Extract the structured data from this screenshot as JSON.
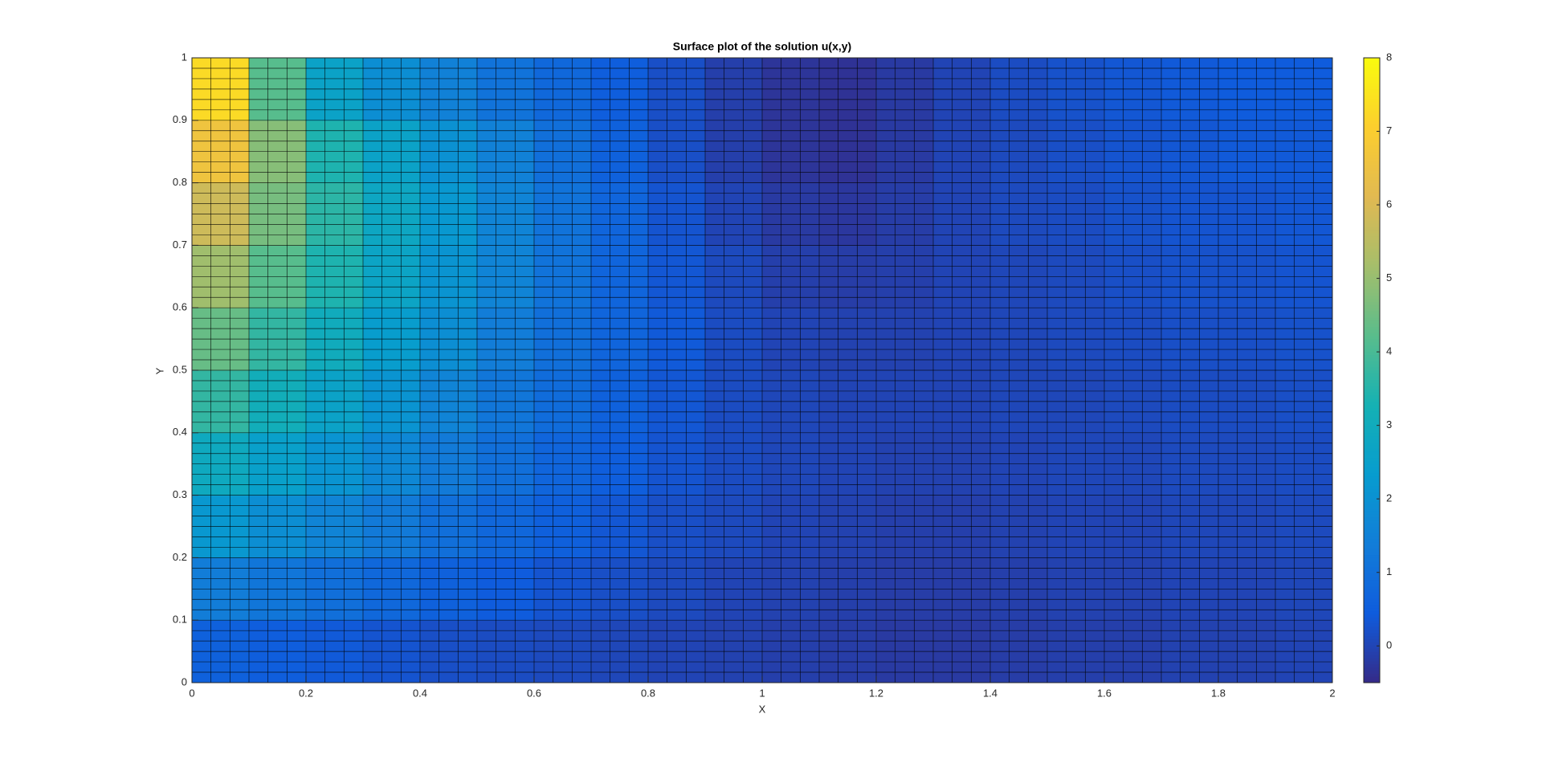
{
  "chart_data": {
    "type": "heatmap",
    "title": "Surface plot of the solution u(x,y)",
    "x_label": "X",
    "y_label": "Y",
    "x": [
      0.05,
      0.15,
      0.25,
      0.35,
      0.45,
      0.55,
      0.65,
      0.75,
      0.85,
      0.95,
      1.05,
      1.15,
      1.25,
      1.35,
      1.45,
      1.55,
      1.65,
      1.75,
      1.85,
      1.95
    ],
    "y": [
      0.05,
      0.15,
      0.25,
      0.35,
      0.45,
      0.55,
      0.65,
      0.75,
      0.85,
      0.95
    ],
    "z": [
      [
        0.6,
        0.5,
        0.4,
        0.3,
        0.2,
        0.15,
        0.1,
        0.05,
        0.0,
        -0.05,
        -0.1,
        -0.15,
        -0.2,
        -0.2,
        -0.15,
        -0.1,
        -0.1,
        -0.05,
        -0.05,
        0.0
      ],
      [
        1.4,
        1.2,
        1.0,
        0.8,
        0.6,
        0.45,
        0.3,
        0.2,
        0.1,
        0.0,
        -0.05,
        -0.1,
        -0.15,
        -0.15,
        -0.1,
        -0.05,
        -0.05,
        0.0,
        0.0,
        0.05
      ],
      [
        2.2,
        1.9,
        1.6,
        1.3,
        1.0,
        0.75,
        0.55,
        0.35,
        0.2,
        0.1,
        0.0,
        -0.05,
        -0.1,
        -0.1,
        -0.05,
        0.0,
        0.0,
        0.05,
        0.05,
        0.1
      ],
      [
        2.9,
        2.5,
        2.1,
        1.7,
        1.3,
        1.0,
        0.7,
        0.5,
        0.3,
        0.15,
        0.05,
        0.0,
        -0.05,
        -0.05,
        0.0,
        0.05,
        0.05,
        0.1,
        0.1,
        0.15
      ],
      [
        3.7,
        3.1,
        2.6,
        2.1,
        1.6,
        1.2,
        0.9,
        0.6,
        0.35,
        0.15,
        0.05,
        0.0,
        0.0,
        0.0,
        0.05,
        0.05,
        0.1,
        0.15,
        0.15,
        0.2
      ],
      [
        4.4,
        3.7,
        3.0,
        2.4,
        1.9,
        1.4,
        1.0,
        0.7,
        0.4,
        0.15,
        0.0,
        -0.05,
        -0.05,
        0.0,
        0.05,
        0.1,
        0.15,
        0.2,
        0.2,
        0.25
      ],
      [
        5.1,
        4.2,
        3.4,
        2.7,
        2.1,
        1.6,
        1.1,
        0.7,
        0.35,
        0.1,
        -0.1,
        -0.15,
        -0.1,
        0.0,
        0.05,
        0.1,
        0.2,
        0.25,
        0.25,
        0.3
      ],
      [
        5.8,
        4.6,
        3.6,
        2.8,
        2.2,
        1.6,
        1.1,
        0.7,
        0.3,
        0.0,
        -0.2,
        -0.25,
        -0.15,
        0.0,
        0.1,
        0.15,
        0.25,
        0.3,
        0.3,
        0.35
      ],
      [
        6.6,
        4.8,
        3.4,
        2.6,
        2.0,
        1.5,
        1.0,
        0.6,
        0.2,
        -0.1,
        -0.3,
        -0.35,
        -0.2,
        0.0,
        0.1,
        0.2,
        0.3,
        0.35,
        0.4,
        0.4
      ],
      [
        7.3,
        4.2,
        2.6,
        1.9,
        1.5,
        1.1,
        0.8,
        0.5,
        0.2,
        -0.1,
        -0.3,
        -0.35,
        -0.2,
        0.0,
        0.15,
        0.25,
        0.35,
        0.4,
        0.45,
        0.45
      ]
    ],
    "xlim": [
      0,
      2
    ],
    "xticks": [
      0,
      0.2,
      0.4,
      0.6,
      0.8,
      1,
      1.2,
      1.4,
      1.6,
      1.8,
      2
    ],
    "ylim": [
      0,
      1
    ],
    "yticks": [
      0,
      0.1,
      0.2,
      0.3,
      0.4,
      0.5,
      0.6,
      0.7,
      0.8,
      0.9,
      1
    ],
    "colormap": "parula",
    "clim": [
      -0.5,
      8
    ],
    "cticks": [
      0,
      1,
      2,
      3,
      4,
      5,
      6,
      7,
      8
    ]
  }
}
